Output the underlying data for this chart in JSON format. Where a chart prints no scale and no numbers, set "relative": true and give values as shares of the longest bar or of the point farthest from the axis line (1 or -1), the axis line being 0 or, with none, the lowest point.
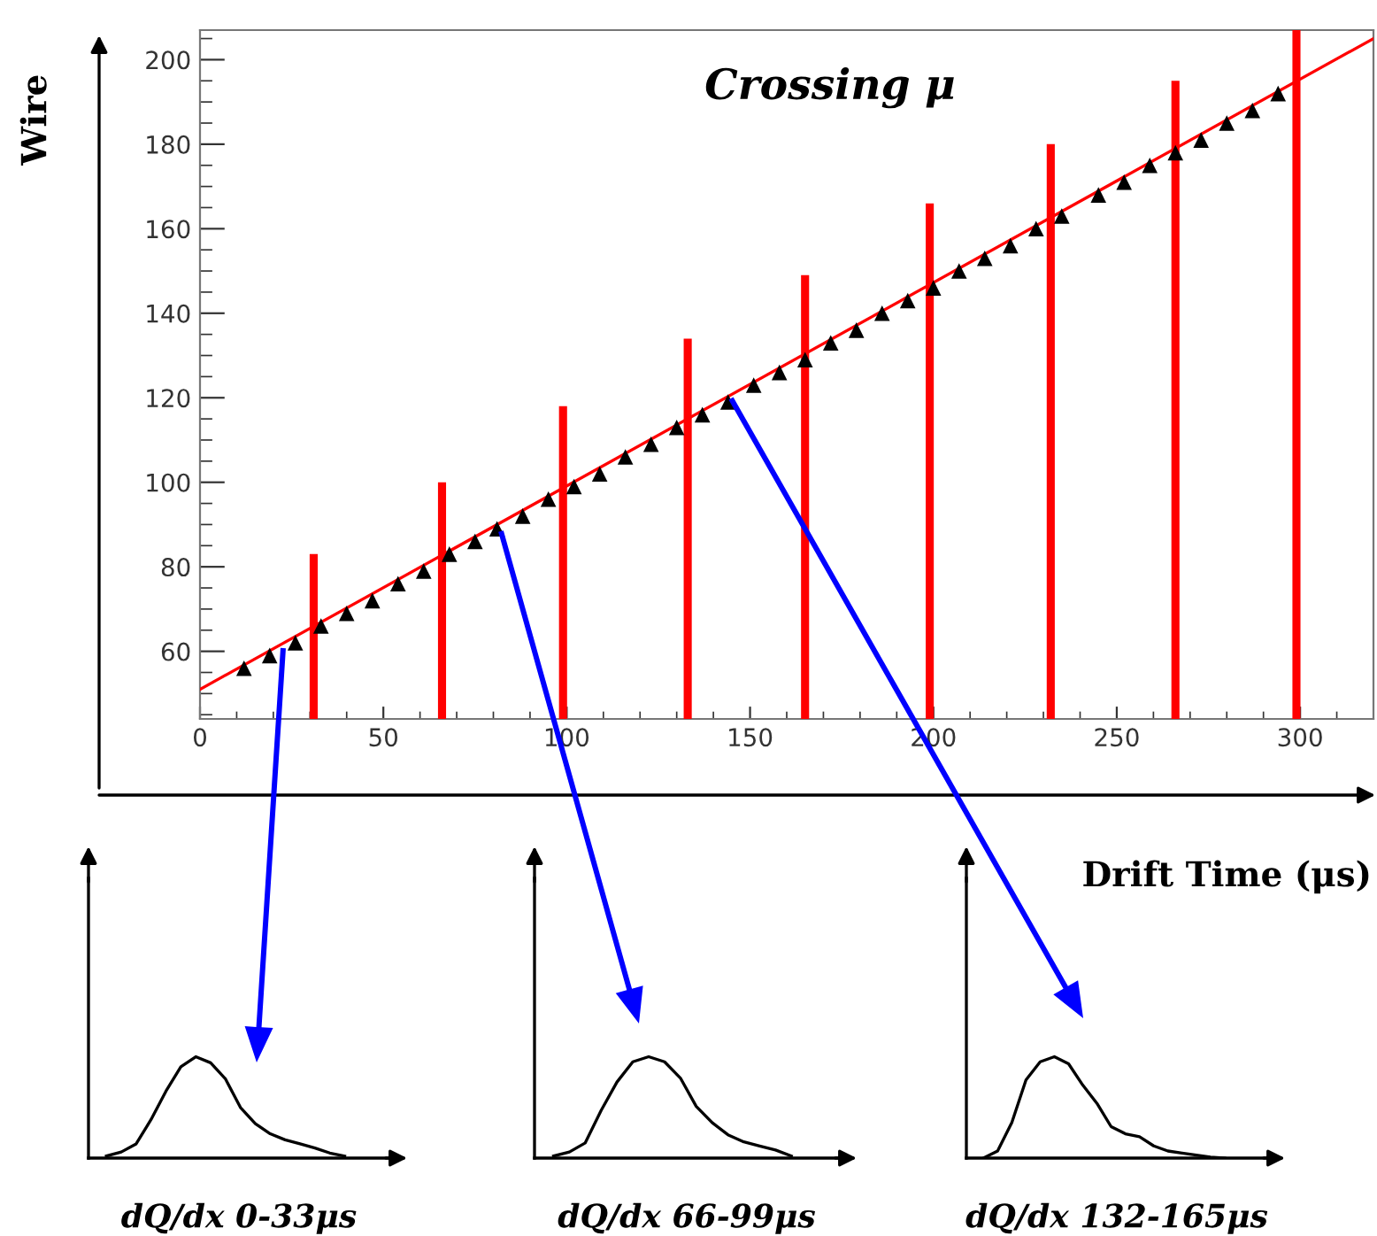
{
  "chart_data": [
    {
      "type": "scatter",
      "title": "Crossing μ",
      "xlabel": "Drift Time (μs)",
      "ylabel": "Wire",
      "xlim": [
        0,
        320
      ],
      "ylim": [
        44,
        207
      ],
      "xticks": [
        0,
        50,
        100,
        150,
        200,
        250,
        300
      ],
      "yticks": [
        60,
        80,
        100,
        120,
        140,
        160,
        180,
        200
      ],
      "grid": false,
      "legend": false,
      "series": [
        {
          "type": "scatter",
          "marker": "triangle",
          "color": "#000000",
          "x": [
            12,
            19,
            26,
            33,
            40,
            47,
            54,
            61,
            68,
            75,
            81,
            88,
            95,
            102,
            109,
            116,
            123,
            130,
            137,
            144,
            151,
            158,
            165,
            172,
            179,
            186,
            193,
            200,
            207,
            214,
            221,
            228,
            235,
            245,
            252,
            259,
            266,
            273,
            280,
            287,
            294
          ],
          "values": [
            56,
            59,
            62,
            66,
            69,
            72,
            76,
            79,
            83,
            86,
            89,
            92,
            96,
            99,
            102,
            106,
            109,
            113,
            116,
            119,
            123,
            126,
            129,
            133,
            136,
            140,
            143,
            146,
            150,
            153,
            156,
            160,
            163,
            168,
            171,
            175,
            178,
            181,
            185,
            188,
            192
          ]
        },
        {
          "type": "line",
          "color": "#ff0000",
          "x": [
            0,
            320
          ],
          "values": [
            51,
            205
          ]
        },
        {
          "type": "bar",
          "color": "#ff0000",
          "x": [
            31,
            66,
            99,
            133,
            165,
            199,
            232,
            266,
            299
          ],
          "values": [
            83,
            100,
            118,
            134,
            149,
            166,
            180,
            195,
            207
          ]
        }
      ]
    },
    {
      "type": "line",
      "relative": true,
      "title": "dQ/dx 0-33μs",
      "categories": [
        null,
        null,
        null,
        null,
        null,
        null,
        null,
        null,
        null,
        null,
        null,
        null,
        null,
        null,
        null,
        null,
        null
      ],
      "series": [
        {
          "color": "#000000",
          "values": [
            0.02,
            0.06,
            0.14,
            0.38,
            0.66,
            0.9,
            1.0,
            0.94,
            0.78,
            0.5,
            0.34,
            0.24,
            0.18,
            0.14,
            0.1,
            0.05,
            0.02
          ]
        }
      ]
    },
    {
      "type": "line",
      "relative": true,
      "title": "dQ/dx 66-99μs",
      "categories": [
        null,
        null,
        null,
        null,
        null,
        null,
        null,
        null,
        null,
        null,
        null,
        null,
        null,
        null,
        null,
        null
      ],
      "series": [
        {
          "color": "#000000",
          "values": [
            0.02,
            0.06,
            0.15,
            0.47,
            0.75,
            0.95,
            1.0,
            0.95,
            0.79,
            0.51,
            0.35,
            0.23,
            0.16,
            0.12,
            0.08,
            0.02
          ]
        }
      ]
    },
    {
      "type": "line",
      "relative": true,
      "title": "dQ/dx 132-165μs",
      "categories": [
        null,
        null,
        null,
        null,
        null,
        null,
        null,
        null,
        null,
        null,
        null,
        null,
        null,
        null,
        null,
        null,
        null,
        null
      ],
      "series": [
        {
          "color": "#000000",
          "values": [
            0.0,
            0.07,
            0.35,
            0.77,
            0.95,
            1.0,
            0.93,
            0.72,
            0.54,
            0.31,
            0.24,
            0.21,
            0.12,
            0.07,
            0.05,
            0.03,
            0.01,
            0.0
          ]
        }
      ]
    }
  ]
}
